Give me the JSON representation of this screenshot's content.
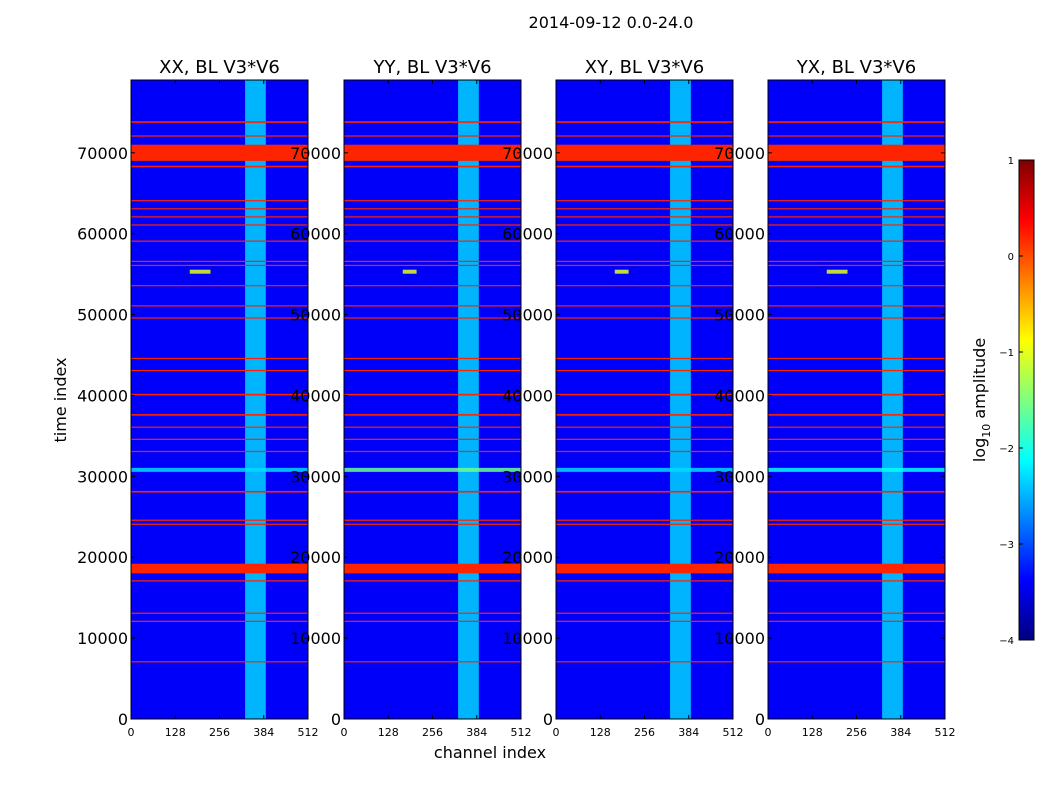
{
  "figure": {
    "suptitle": "2014-09-12 0.0-24.0"
  },
  "chart_data": {
    "type": "heatmap",
    "panels": [
      {
        "title": "XX, BL V3*V6"
      },
      {
        "title": "YY, BL V3*V6"
      },
      {
        "title": "XY, BL V3*V6"
      },
      {
        "title": "YX, BL V3*V6"
      }
    ],
    "xlabel": "channel index",
    "ylabel": "time index",
    "xlim": [
      0,
      512
    ],
    "ylim": [
      0,
      79000
    ],
    "xticks": [
      0,
      128,
      256,
      384,
      512
    ],
    "yticks": [
      0,
      10000,
      20000,
      30000,
      40000,
      50000,
      60000,
      70000
    ],
    "colorbar": {
      "label": "log10 amplitude",
      "label_text": "log",
      "label_sub": "10",
      "label_rest": " amplitude",
      "range": [
        -4,
        1
      ],
      "ticks": [
        1,
        0,
        -1,
        -2,
        -3,
        -4
      ],
      "tick_labels": [
        "1",
        "0",
        "−1",
        "−2",
        "−3",
        "−4"
      ],
      "colors": [
        "#00007f",
        "#0000ff",
        "#007fff",
        "#00ffff",
        "#7fff7f",
        "#ffff00",
        "#ff7f00",
        "#ff0000",
        "#7f0000"
      ]
    },
    "background_level": -3.4,
    "rfi_band": {
      "channel_start": 330,
      "channel_end": 390,
      "level": -2.2
    },
    "flagged_rows": [
      {
        "t0": 69000,
        "t1": 71000
      },
      {
        "t0": 18000,
        "t1": 19200
      },
      {
        "t0": 73700,
        "t1": 73900
      },
      {
        "t0": 72000,
        "t1": 72150
      },
      {
        "t0": 68200,
        "t1": 68400
      },
      {
        "t0": 64000,
        "t1": 64150
      },
      {
        "t0": 63000,
        "t1": 63150
      },
      {
        "t0": 62000,
        "t1": 62150
      },
      {
        "t0": 61000,
        "t1": 61150
      },
      {
        "t0": 59000,
        "t1": 59150
      },
      {
        "t0": 56500,
        "t1": 56650
      },
      {
        "t0": 56000,
        "t1": 56150
      },
      {
        "t0": 53500,
        "t1": 53650
      },
      {
        "t0": 51000,
        "t1": 51150
      },
      {
        "t0": 49500,
        "t1": 49650
      },
      {
        "t0": 44500,
        "t1": 44650
      },
      {
        "t0": 43000,
        "t1": 43150
      },
      {
        "t0": 40000,
        "t1": 40200
      },
      {
        "t0": 37500,
        "t1": 37700
      },
      {
        "t0": 36000,
        "t1": 36150
      },
      {
        "t0": 34500,
        "t1": 34650
      },
      {
        "t0": 33000,
        "t1": 33150
      },
      {
        "t0": 28000,
        "t1": 28200
      },
      {
        "t0": 24500,
        "t1": 24650
      },
      {
        "t0": 24000,
        "t1": 24150
      },
      {
        "t0": 17000,
        "t1": 17150
      },
      {
        "t0": 13000,
        "t1": 13150
      },
      {
        "t0": 12000,
        "t1": 12150
      },
      {
        "t0": 7000,
        "t1": 7150
      }
    ],
    "flag_level": 0.2,
    "bright_features": [
      {
        "panel": 0,
        "t": 55300,
        "channel": 170,
        "width": 60,
        "level": -1.0
      },
      {
        "panel": 1,
        "t": 55300,
        "channel": 170,
        "width": 40,
        "level": -1.0
      },
      {
        "panel": 2,
        "t": 55300,
        "channel": 170,
        "width": 40,
        "level": -1.0
      },
      {
        "panel": 3,
        "t": 55300,
        "channel": 170,
        "width": 60,
        "level": -1.0
      },
      {
        "panel": 0,
        "t": 30800,
        "channel": 0,
        "width": 512,
        "level": -2.3
      },
      {
        "panel": 1,
        "t": 30800,
        "channel": 0,
        "width": 512,
        "level": -1.6
      },
      {
        "panel": 2,
        "t": 30800,
        "channel": 0,
        "width": 512,
        "level": -2.3
      },
      {
        "panel": 3,
        "t": 30800,
        "channel": 0,
        "width": 512,
        "level": -2.1
      }
    ]
  }
}
